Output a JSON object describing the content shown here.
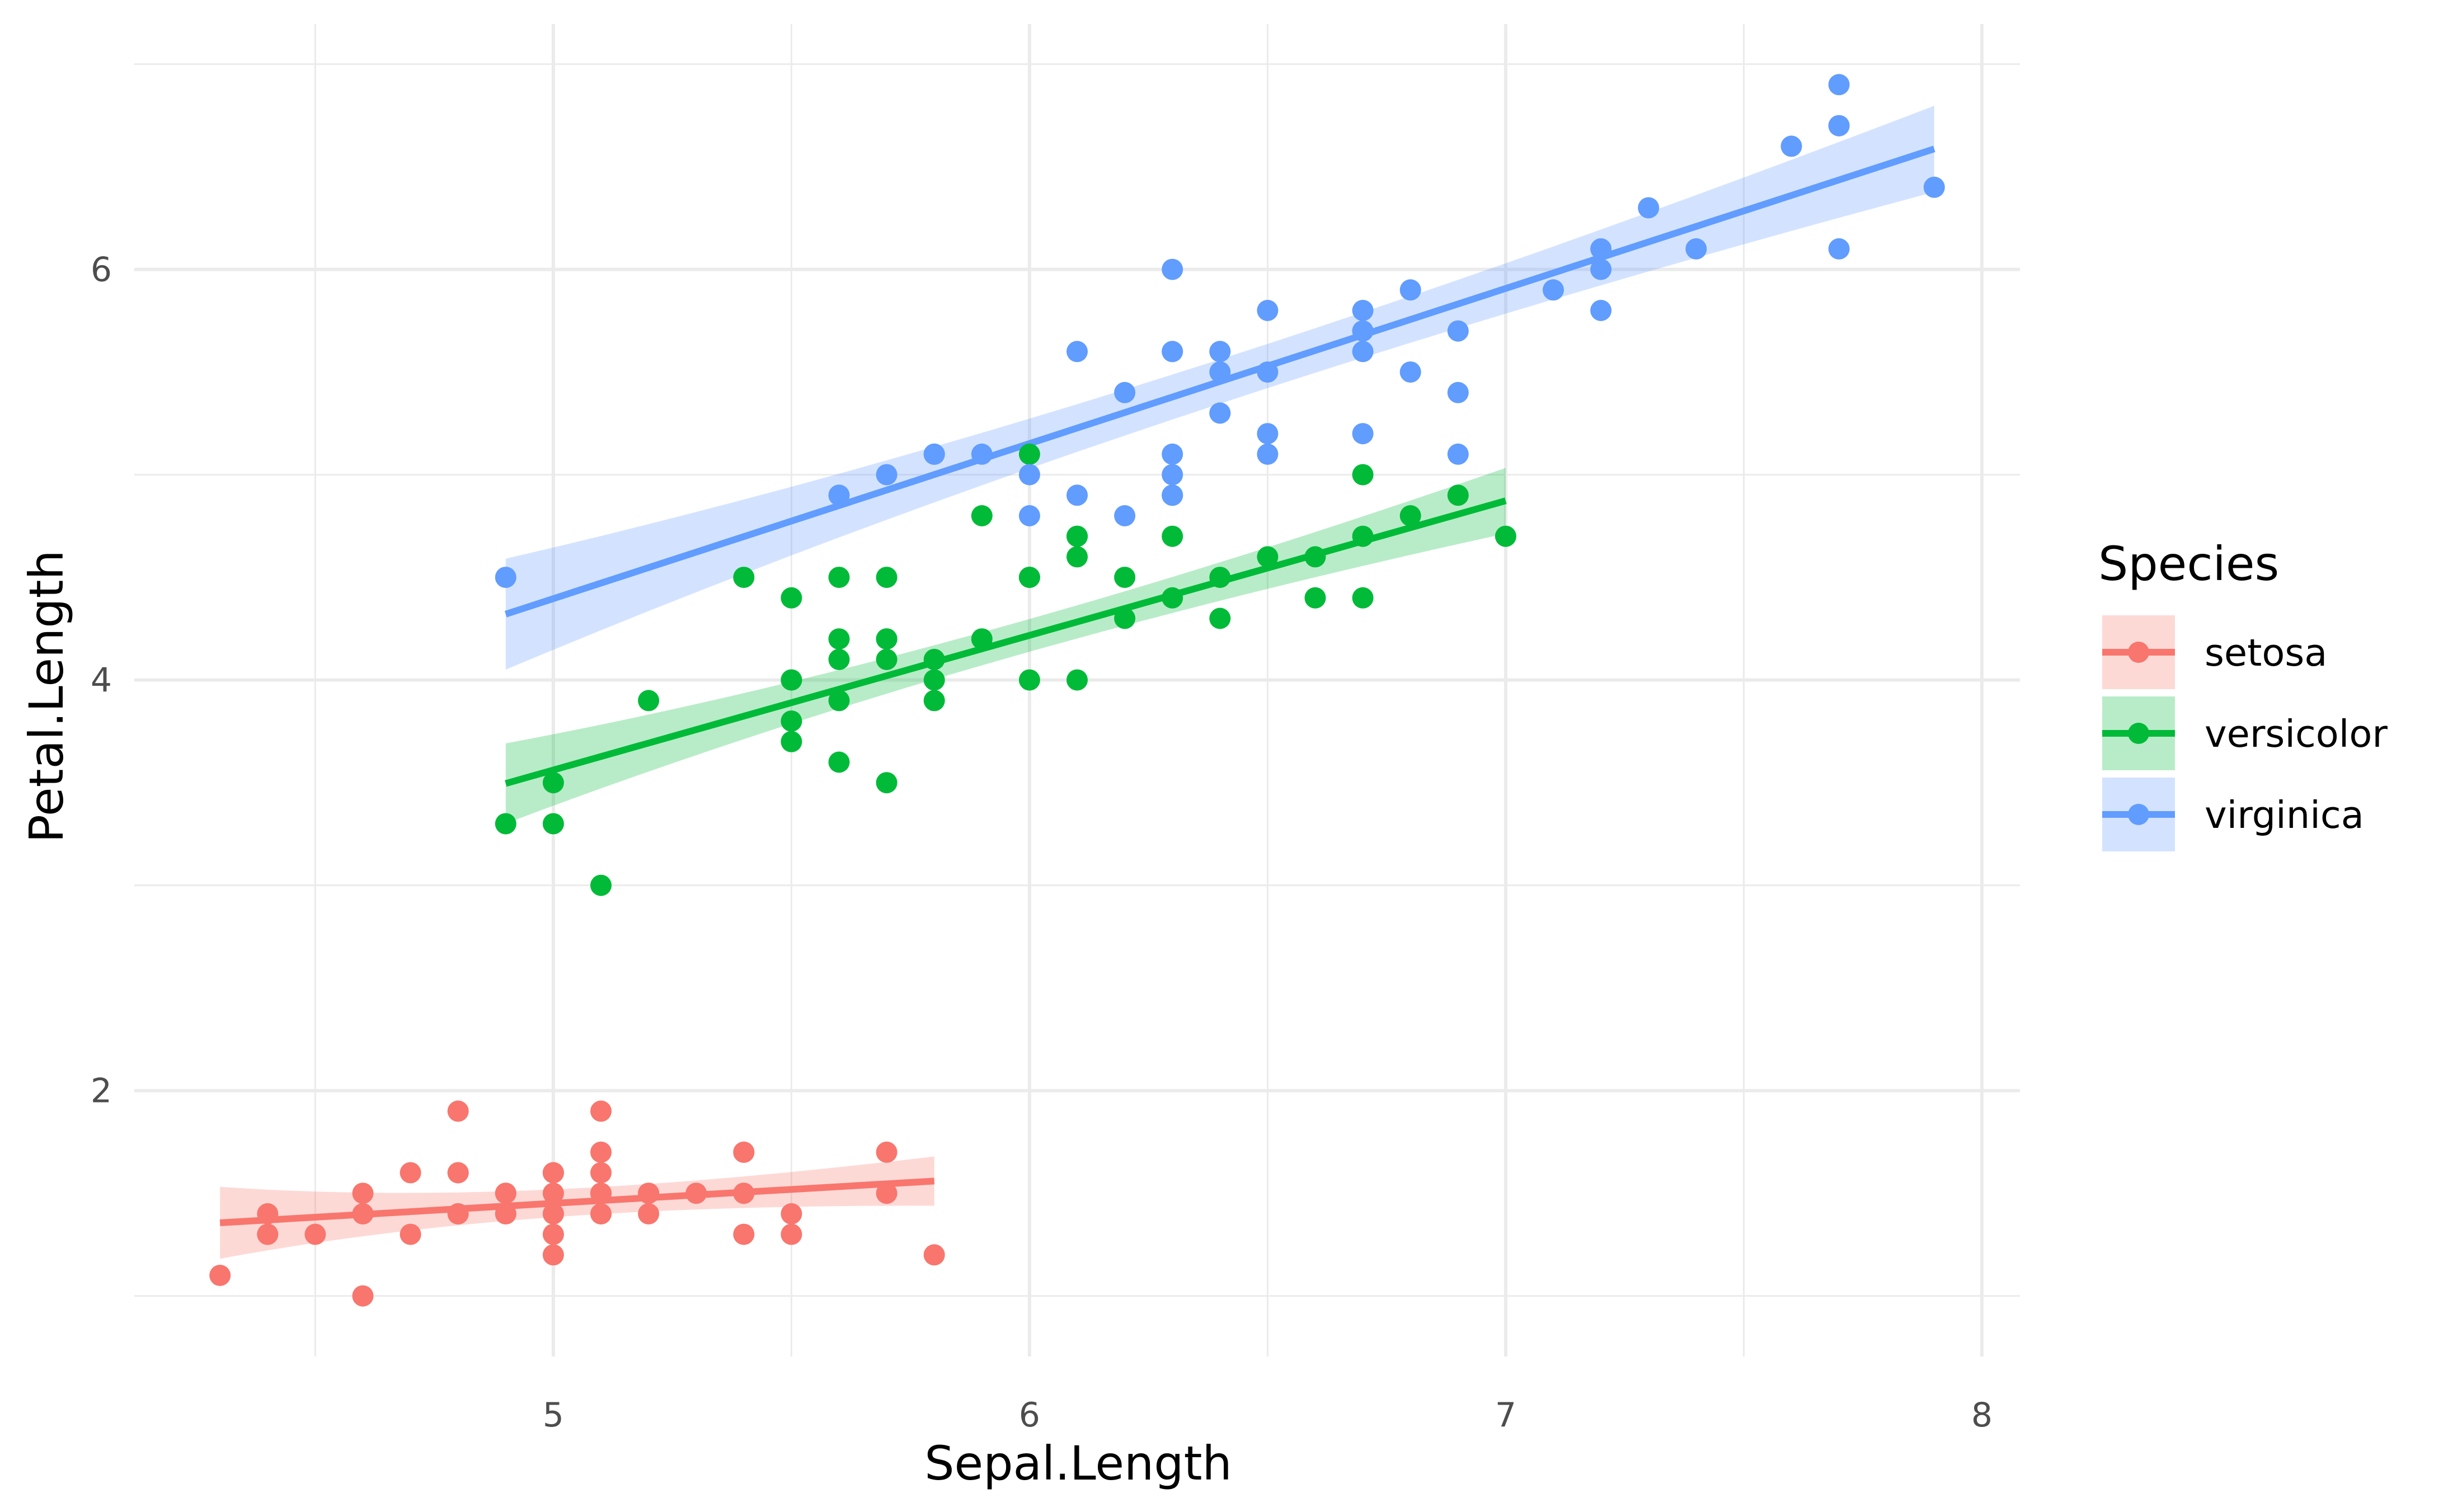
{
  "chart_data": {
    "type": "scatter",
    "xlabel": "Sepal.Length",
    "ylabel": "Petal.Length",
    "xlim": [
      4.12,
      8.08
    ],
    "ylim": [
      0.705,
      7.195
    ],
    "x_ticks": [
      5,
      6,
      7,
      8
    ],
    "y_ticks": [
      2,
      4,
      6
    ],
    "x_minor": [
      4.5,
      5.5,
      6.5,
      7.5
    ],
    "y_minor": [
      1,
      3,
      5,
      7
    ],
    "grid": true,
    "legend": {
      "title": "Species",
      "position": "right"
    },
    "series": [
      {
        "name": "setosa",
        "color": "#F8766D",
        "points": [
          [
            5.1,
            1.4
          ],
          [
            4.9,
            1.4
          ],
          [
            4.7,
            1.3
          ],
          [
            4.6,
            1.5
          ],
          [
            5.0,
            1.4
          ],
          [
            5.4,
            1.7
          ],
          [
            4.6,
            1.4
          ],
          [
            5.0,
            1.5
          ],
          [
            4.4,
            1.4
          ],
          [
            4.9,
            1.5
          ],
          [
            5.4,
            1.5
          ],
          [
            4.8,
            1.6
          ],
          [
            4.8,
            1.4
          ],
          [
            4.3,
            1.1
          ],
          [
            5.8,
            1.2
          ],
          [
            5.7,
            1.5
          ],
          [
            5.4,
            1.3
          ],
          [
            5.1,
            1.4
          ],
          [
            5.7,
            1.7
          ],
          [
            5.1,
            1.5
          ],
          [
            5.4,
            1.7
          ],
          [
            5.1,
            1.5
          ],
          [
            4.6,
            1.0
          ],
          [
            5.1,
            1.7
          ],
          [
            4.8,
            1.9
          ],
          [
            5.0,
            1.6
          ],
          [
            5.0,
            1.6
          ],
          [
            5.2,
            1.5
          ],
          [
            5.2,
            1.4
          ],
          [
            4.7,
            1.6
          ],
          [
            4.8,
            1.6
          ],
          [
            5.4,
            1.5
          ],
          [
            5.2,
            1.5
          ],
          [
            5.5,
            1.4
          ],
          [
            4.9,
            1.5
          ],
          [
            5.0,
            1.2
          ],
          [
            5.5,
            1.3
          ],
          [
            4.9,
            1.4
          ],
          [
            4.4,
            1.3
          ],
          [
            5.1,
            1.5
          ],
          [
            5.0,
            1.3
          ],
          [
            4.5,
            1.3
          ],
          [
            4.4,
            1.3
          ],
          [
            5.0,
            1.6
          ],
          [
            5.1,
            1.9
          ],
          [
            4.8,
            1.4
          ],
          [
            5.1,
            1.6
          ],
          [
            4.6,
            1.4
          ],
          [
            5.3,
            1.5
          ],
          [
            5.0,
            1.4
          ]
        ],
        "fit": {
          "x": [
            4.3,
            5.8
          ],
          "y": [
            1.3563,
            1.5594
          ],
          "se_low": [
            1.18,
            1.44
          ],
          "se_high": [
            1.53,
            1.68
          ]
        }
      },
      {
        "name": "versicolor",
        "color": "#00BA38",
        "points": [
          [
            7.0,
            4.7
          ],
          [
            6.4,
            4.5
          ],
          [
            6.9,
            4.9
          ],
          [
            5.5,
            4.0
          ],
          [
            6.5,
            4.6
          ],
          [
            5.7,
            4.5
          ],
          [
            6.3,
            4.7
          ],
          [
            4.9,
            3.3
          ],
          [
            6.6,
            4.6
          ],
          [
            5.2,
            3.9
          ],
          [
            5.0,
            3.5
          ],
          [
            5.9,
            4.2
          ],
          [
            6.0,
            4.0
          ],
          [
            6.1,
            4.7
          ],
          [
            5.6,
            3.6
          ],
          [
            6.7,
            4.4
          ],
          [
            5.6,
            4.5
          ],
          [
            5.8,
            4.1
          ],
          [
            6.2,
            4.5
          ],
          [
            5.6,
            3.9
          ],
          [
            5.9,
            4.8
          ],
          [
            6.1,
            4.0
          ],
          [
            6.3,
            4.9
          ],
          [
            6.1,
            4.7
          ],
          [
            6.4,
            4.3
          ],
          [
            6.6,
            4.4
          ],
          [
            6.8,
            4.8
          ],
          [
            6.7,
            5.0
          ],
          [
            6.0,
            4.5
          ],
          [
            5.7,
            3.5
          ],
          [
            5.5,
            3.8
          ],
          [
            5.5,
            3.7
          ],
          [
            5.8,
            3.9
          ],
          [
            6.0,
            5.1
          ],
          [
            5.4,
            4.5
          ],
          [
            6.0,
            4.5
          ],
          [
            6.7,
            4.7
          ],
          [
            6.3,
            4.4
          ],
          [
            5.6,
            4.1
          ],
          [
            5.5,
            4.0
          ],
          [
            5.5,
            4.4
          ],
          [
            6.1,
            4.6
          ],
          [
            5.8,
            4.0
          ],
          [
            5.0,
            3.3
          ],
          [
            5.6,
            4.2
          ],
          [
            5.7,
            4.2
          ],
          [
            5.7,
            4.2
          ],
          [
            6.2,
            4.3
          ],
          [
            5.1,
            3.0
          ],
          [
            5.7,
            4.1
          ]
        ],
        "fit": {
          "x": [
            4.9,
            7.0
          ],
          "y": [
            3.4961,
            4.8731
          ],
          "se_low": [
            3.3,
            4.72
          ],
          "se_high": [
            3.69,
            5.04
          ]
        }
      },
      {
        "name": "virginica",
        "color": "#619CFF",
        "points": [
          [
            6.3,
            6.0
          ],
          [
            5.8,
            5.1
          ],
          [
            7.1,
            5.9
          ],
          [
            6.3,
            5.6
          ],
          [
            6.5,
            5.8
          ],
          [
            7.6,
            6.6
          ],
          [
            4.9,
            4.5
          ],
          [
            7.3,
            6.3
          ],
          [
            6.7,
            5.8
          ],
          [
            7.2,
            6.1
          ],
          [
            6.5,
            5.1
          ],
          [
            6.4,
            5.3
          ],
          [
            6.8,
            5.5
          ],
          [
            5.7,
            5.0
          ],
          [
            5.8,
            5.1
          ],
          [
            6.4,
            5.3
          ],
          [
            6.5,
            5.5
          ],
          [
            7.7,
            6.7
          ],
          [
            7.7,
            6.9
          ],
          [
            6.0,
            5.0
          ],
          [
            6.9,
            5.7
          ],
          [
            5.6,
            4.9
          ],
          [
            7.7,
            6.7
          ],
          [
            6.3,
            4.9
          ],
          [
            6.7,
            5.7
          ],
          [
            7.2,
            6.0
          ],
          [
            6.2,
            4.8
          ],
          [
            6.1,
            4.9
          ],
          [
            6.4,
            5.6
          ],
          [
            7.2,
            5.8
          ],
          [
            7.4,
            6.1
          ],
          [
            7.9,
            6.4
          ],
          [
            6.4,
            5.6
          ],
          [
            6.3,
            5.1
          ],
          [
            6.1,
            5.6
          ],
          [
            7.7,
            6.1
          ],
          [
            6.3,
            5.6
          ],
          [
            6.4,
            5.5
          ],
          [
            6.0,
            4.8
          ],
          [
            6.9,
            5.4
          ],
          [
            6.7,
            5.6
          ],
          [
            6.9,
            5.1
          ],
          [
            5.8,
            5.1
          ],
          [
            6.8,
            5.9
          ],
          [
            6.7,
            5.7
          ],
          [
            6.7,
            5.2
          ],
          [
            6.3,
            5.0
          ],
          [
            6.5,
            5.2
          ],
          [
            6.2,
            5.4
          ],
          [
            5.9,
            5.1
          ]
        ],
        "fit": {
          "x": [
            4.9,
            7.9
          ],
          "y": [
            4.3208,
            6.5869
          ],
          "se_low": [
            4.05,
            6.37
          ],
          "se_high": [
            4.59,
            6.79
          ]
        }
      }
    ]
  }
}
